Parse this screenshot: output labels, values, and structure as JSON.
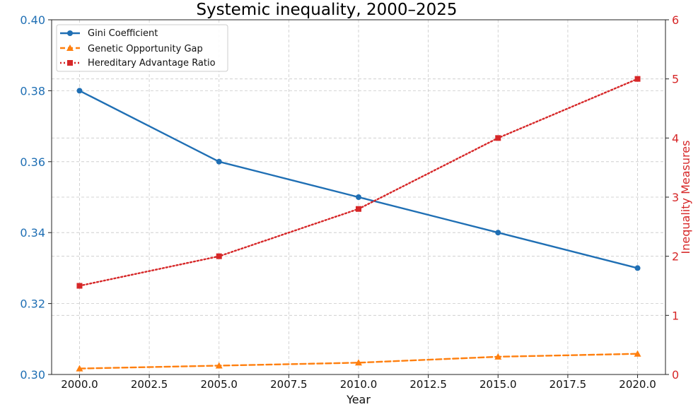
{
  "chart_data": {
    "type": "line",
    "title": "Systemic inequality, 2000–2025",
    "xlabel": "Year",
    "ylabel_left": "",
    "ylabel_right": "Inequality Measures",
    "x": [
      2000,
      2005,
      2010,
      2015,
      2020
    ],
    "x_ticks": [
      2000.0,
      2002.5,
      2005.0,
      2007.5,
      2010.0,
      2012.5,
      2015.0,
      2017.5,
      2020.0
    ],
    "x_tick_labels": [
      "2000.0",
      "2002.5",
      "2005.0",
      "2007.5",
      "2010.0",
      "2012.5",
      "2015.0",
      "2017.5",
      "2020.0"
    ],
    "xlim": [
      1999.0,
      2021.0
    ],
    "y_left_ticks": [
      0.3,
      0.32,
      0.34,
      0.36,
      0.38,
      0.4
    ],
    "y_left_tick_labels": [
      "0.30",
      "0.32",
      "0.34",
      "0.36",
      "0.38",
      "0.40"
    ],
    "ylim_left": [
      0.3,
      0.4
    ],
    "y_right_ticks": [
      0,
      1,
      2,
      3,
      4,
      5,
      6
    ],
    "y_right_tick_labels": [
      "0",
      "1",
      "2",
      "3",
      "4",
      "5",
      "6"
    ],
    "ylim_right": [
      0,
      6
    ],
    "grid": true,
    "legend_position": "top-left",
    "left_axis_color": "#1f6fb4",
    "right_axis_color": "#d62728",
    "series": [
      {
        "name": "Gini Coefficient",
        "axis": "left",
        "values": [
          0.38,
          0.36,
          0.35,
          0.34,
          0.33
        ],
        "color": "#1f6fb4",
        "linestyle": "solid",
        "marker": "circle"
      },
      {
        "name": "Genetic Opportunity Gap",
        "axis": "right",
        "values": [
          0.1,
          0.15,
          0.2,
          0.3,
          0.35
        ],
        "color": "#ff7f0e",
        "linestyle": "dashed",
        "marker": "triangle"
      },
      {
        "name": "Hereditary Advantage Ratio",
        "axis": "right",
        "values": [
          1.5,
          2.0,
          2.8,
          4.0,
          5.0
        ],
        "color": "#d62728",
        "linestyle": "dotted",
        "marker": "square"
      }
    ]
  }
}
